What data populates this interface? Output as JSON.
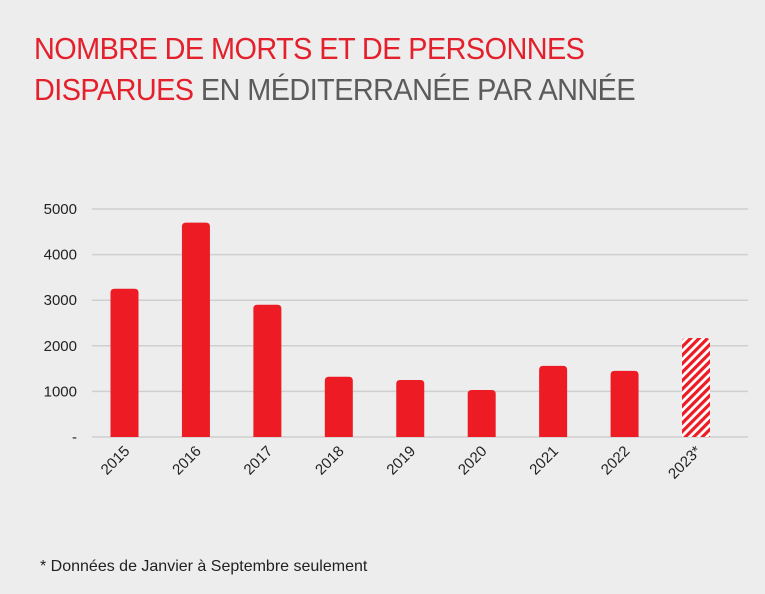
{
  "title": {
    "line1_red": "NOMBRE DE MORTS ET DE PERSONNES",
    "line2_red": "DISPARUES",
    "line2_grey": " EN MÉDITERRANÉE PAR ANNÉE"
  },
  "footnote": "* Données de Janvier à Septembre seulement",
  "colors": {
    "bar": "#ed1c24",
    "title_red": "#e3202b",
    "title_grey": "#5b5b5b",
    "grid": "#cfcfcf",
    "background": "#ededed"
  },
  "chart_data": {
    "type": "bar",
    "title": "NOMBRE DE MORTS ET DE PERSONNES DISPARUES EN MÉDITERRANÉE PAR ANNÉE",
    "xlabel": "",
    "ylabel": "",
    "categories": [
      "2015",
      "2016",
      "2017",
      "2018",
      "2019",
      "2020",
      "2021",
      "2022",
      "2023*"
    ],
    "values": [
      3250,
      4700,
      2900,
      1320,
      1250,
      1030,
      1560,
      1450,
      2170
    ],
    "partial_data": [
      false,
      false,
      false,
      false,
      false,
      false,
      false,
      false,
      true
    ],
    "ylim": [
      0,
      5000
    ],
    "yticks": [
      0,
      1000,
      2000,
      3000,
      4000,
      5000
    ],
    "ytick_labels": [
      "-",
      "1000",
      "2000",
      "3000",
      "4000",
      "5000"
    ],
    "grid": true,
    "legend": "none"
  }
}
